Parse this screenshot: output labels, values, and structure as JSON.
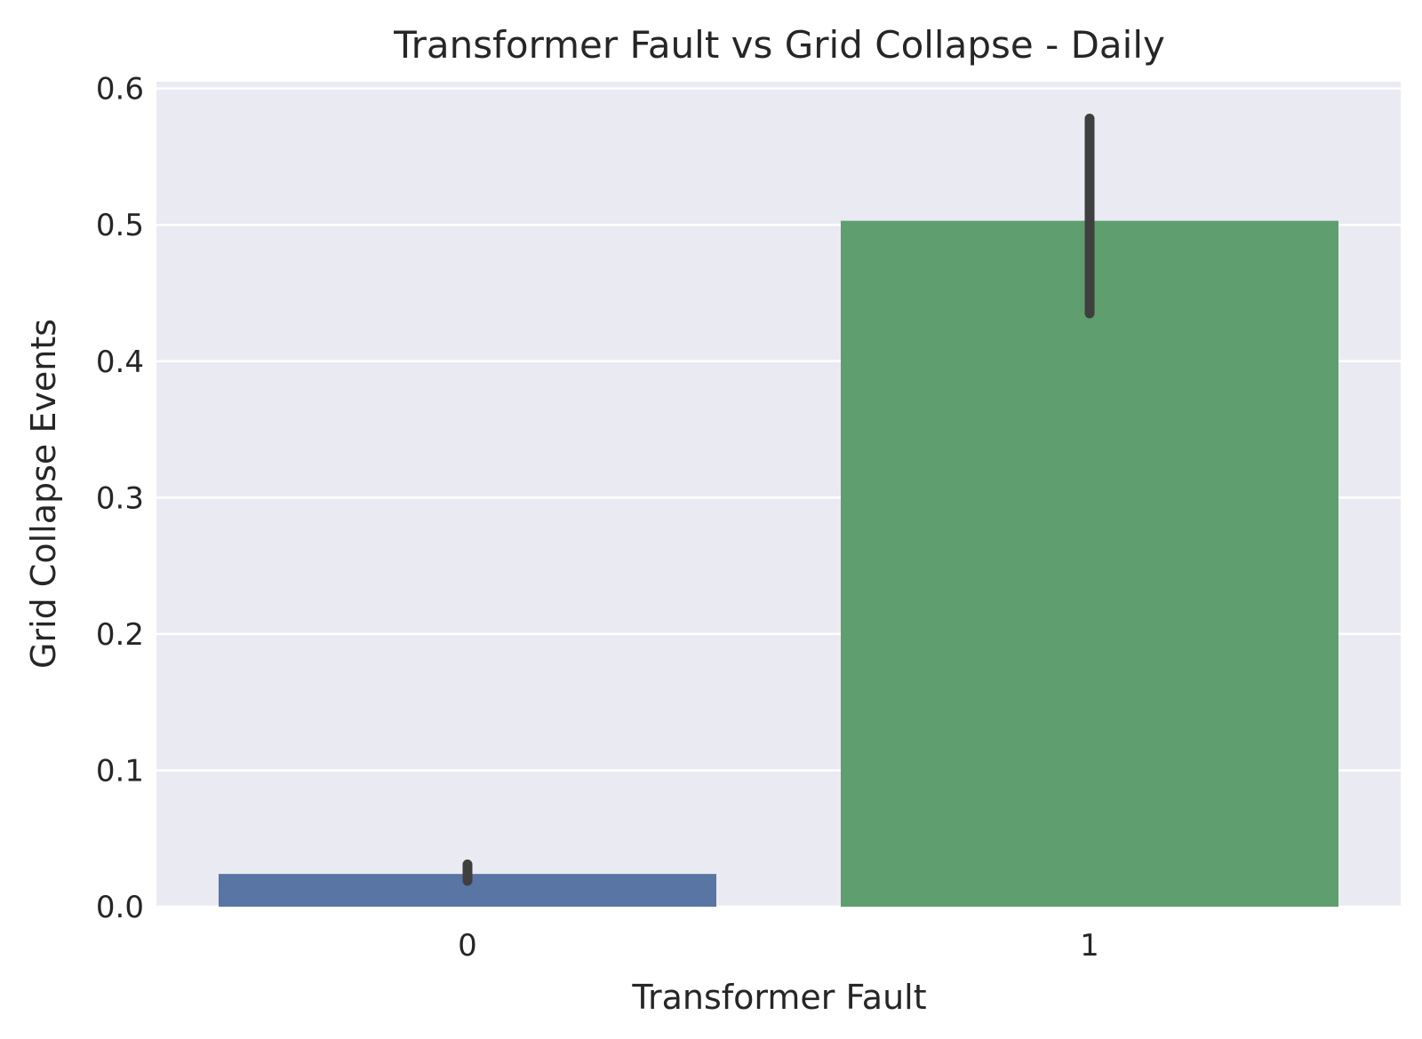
{
  "chart_data": {
    "type": "bar",
    "title": "Transformer Fault vs Grid Collapse - Daily",
    "xlabel": "Transformer Fault",
    "ylabel": "Grid Collapse Events",
    "categories": [
      "0",
      "1"
    ],
    "values": [
      0.024,
      0.503
    ],
    "error_bars": [
      {
        "low": 0.019,
        "high": 0.031
      },
      {
        "low": 0.435,
        "high": 0.578
      }
    ],
    "bar_colors": [
      "#5875a4",
      "#5f9e6e"
    ],
    "ylim": [
      0,
      0.605
    ],
    "yticks": [
      "0.0",
      "0.1",
      "0.2",
      "0.3",
      "0.4",
      "0.5",
      "0.6"
    ],
    "grid": true,
    "background_color": "#eaeaf2",
    "grid_color": "#ffffff",
    "errorbar_color": "#3f3f3f",
    "legend": "none"
  }
}
